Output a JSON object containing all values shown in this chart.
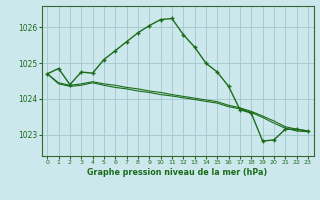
{
  "title": "Graphe pression niveau de la mer (hPa)",
  "background_color": "#cde8ec",
  "plot_bg_color": "#cde8ec",
  "grid_color": "#a0c8cc",
  "line_color": "#1a6b1a",
  "marker_color": "#1a6b1a",
  "xlim": [
    -0.5,
    23.5
  ],
  "ylim": [
    1022.4,
    1026.6
  ],
  "yticks": [
    1023,
    1024,
    1025,
    1026
  ],
  "xticks": [
    0,
    1,
    2,
    3,
    4,
    5,
    6,
    7,
    8,
    9,
    10,
    11,
    12,
    13,
    14,
    15,
    16,
    17,
    18,
    19,
    20,
    21,
    22,
    23
  ],
  "series": [
    {
      "y": [
        1024.7,
        1024.85,
        1024.4,
        1024.75,
        1024.72,
        1025.1,
        1025.35,
        1025.6,
        1025.85,
        1026.05,
        1026.22,
        1026.25,
        1025.8,
        1025.45,
        1025.0,
        1024.75,
        1024.35,
        1023.7,
        1023.6,
        1022.82,
        1022.85,
        1023.15,
        1023.15,
        1023.1
      ],
      "marker": true,
      "linewidth": 1.0
    },
    {
      "y": [
        1024.7,
        1024.45,
        1024.38,
        1024.42,
        1024.48,
        1024.42,
        1024.38,
        1024.32,
        1024.28,
        1024.22,
        1024.18,
        1024.12,
        1024.07,
        1024.02,
        1023.97,
        1023.92,
        1023.82,
        1023.75,
        1023.65,
        1023.52,
        1023.38,
        1023.22,
        1023.15,
        1023.1
      ],
      "marker": false,
      "linewidth": 0.8
    },
    {
      "y": [
        1024.7,
        1024.42,
        1024.35,
        1024.38,
        1024.45,
        1024.38,
        1024.32,
        1024.28,
        1024.22,
        1024.18,
        1024.12,
        1024.08,
        1024.03,
        1023.98,
        1023.93,
        1023.88,
        1023.78,
        1023.72,
        1023.62,
        1023.48,
        1023.32,
        1023.18,
        1023.1,
        1023.08
      ],
      "marker": false,
      "linewidth": 0.8
    }
  ]
}
